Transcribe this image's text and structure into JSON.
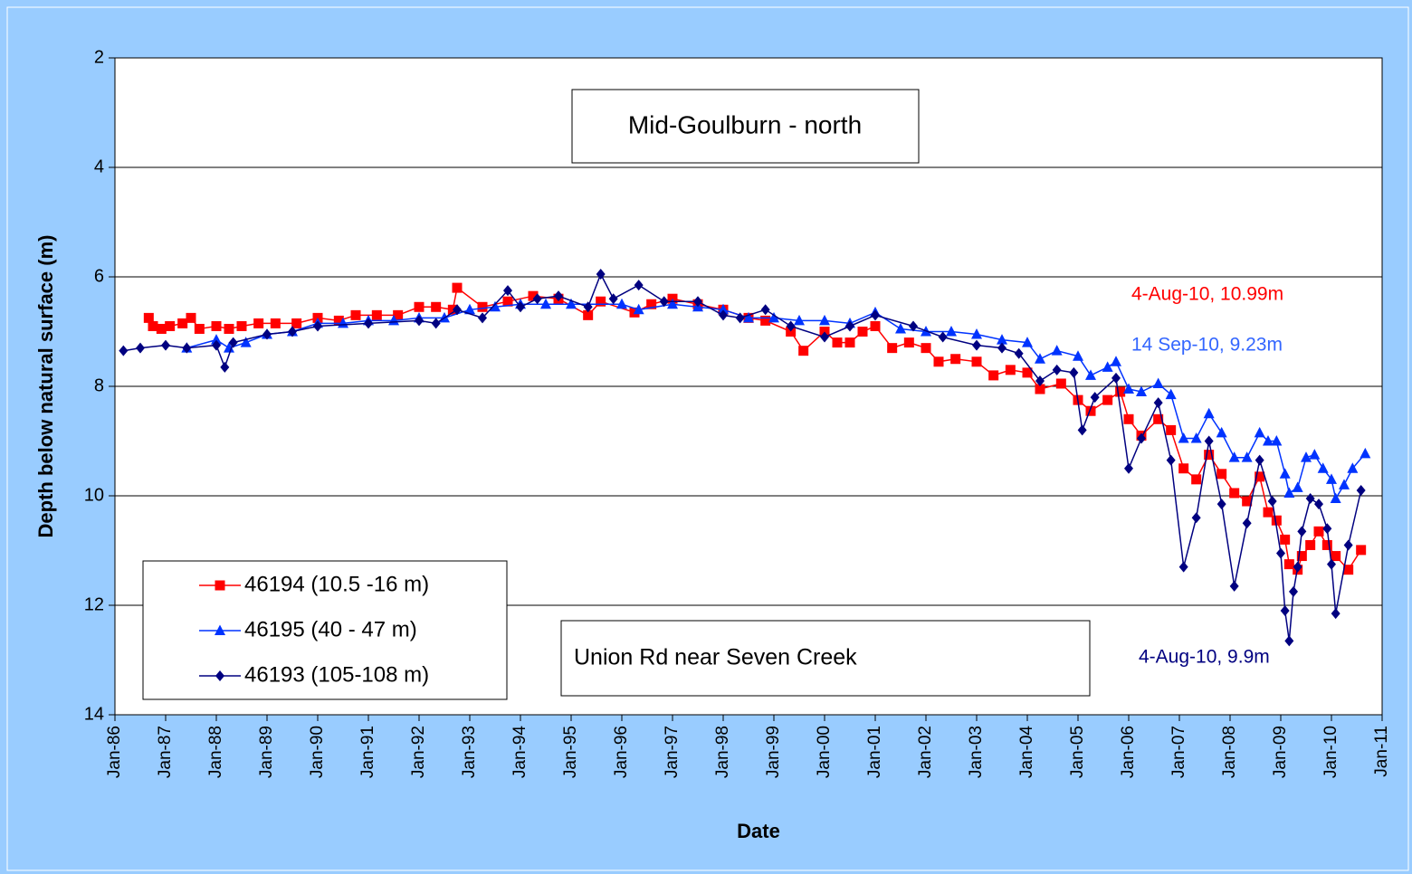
{
  "chart_data": {
    "type": "line",
    "title": "Mid-Goulburn - north",
    "subtitle": "Union Rd near Seven Creek",
    "x_label": "Date",
    "y_label": "Depth below natural surface (m)",
    "ylim": [
      2,
      14
    ],
    "y_inverted": true,
    "yticks": [
      2,
      4,
      6,
      8,
      10,
      12,
      14
    ],
    "xlim": [
      "1986-01",
      "2011-01"
    ],
    "xticks": [
      {
        "value": "1986-01",
        "label": "Jan-86"
      },
      {
        "value": "1987-01",
        "label": "Jan-87"
      },
      {
        "value": "1988-01",
        "label": "Jan-88"
      },
      {
        "value": "1989-01",
        "label": "Jan-89"
      },
      {
        "value": "1990-01",
        "label": "Jan-90"
      },
      {
        "value": "1991-01",
        "label": "Jan-91"
      },
      {
        "value": "1992-01",
        "label": "Jan-92"
      },
      {
        "value": "1993-01",
        "label": "Jan-93"
      },
      {
        "value": "1994-01",
        "label": "Jan-94"
      },
      {
        "value": "1995-01",
        "label": "Jan-95"
      },
      {
        "value": "1996-01",
        "label": "Jan-96"
      },
      {
        "value": "1997-01",
        "label": "Jan-97"
      },
      {
        "value": "1998-01",
        "label": "Jan-98"
      },
      {
        "value": "1999-01",
        "label": "Jan-99"
      },
      {
        "value": "2000-01",
        "label": "Jan-00"
      },
      {
        "value": "2001-01",
        "label": "Jan-01"
      },
      {
        "value": "2002-01",
        "label": "Jan-02"
      },
      {
        "value": "2003-01",
        "label": "Jan-03"
      },
      {
        "value": "2004-01",
        "label": "Jan-04"
      },
      {
        "value": "2005-01",
        "label": "Jan-05"
      },
      {
        "value": "2006-01",
        "label": "Jan-06"
      },
      {
        "value": "2007-01",
        "label": "Jan-07"
      },
      {
        "value": "2008-01",
        "label": "Jan-08"
      },
      {
        "value": "2009-01",
        "label": "Jan-09"
      },
      {
        "value": "2010-01",
        "label": "Jan-10"
      },
      {
        "value": "2011-01",
        "label": "Jan-11"
      }
    ],
    "grid": true,
    "legend": "lower left",
    "series": [
      {
        "name": "46194 (10.5 -16 m)",
        "color": "#ff0000",
        "marker": "square",
        "x": [
          "1986-09",
          "1986-10",
          "1986-12",
          "1987-02",
          "1987-05",
          "1987-07",
          "1987-09",
          "1988-01",
          "1988-04",
          "1988-07",
          "1988-11",
          "1989-03",
          "1989-08",
          "1990-01",
          "1990-06",
          "1990-10",
          "1991-03",
          "1991-08",
          "1992-01",
          "1992-05",
          "1992-09",
          "1992-10",
          "1993-04",
          "1993-10",
          "1994-04",
          "1994-10",
          "1995-05",
          "1995-08",
          "1996-04",
          "1996-08",
          "1997-01",
          "1997-07",
          "1998-01",
          "1998-07",
          "1998-11",
          "1999-05",
          "1999-08",
          "2000-01",
          "2000-04",
          "2000-07",
          "2000-10",
          "2001-01",
          "2001-05",
          "2001-09",
          "2002-01",
          "2002-04",
          "2002-08",
          "2003-01",
          "2003-05",
          "2003-09",
          "2004-01",
          "2004-04",
          "2004-09",
          "2005-01",
          "2005-04",
          "2005-08",
          "2005-11",
          "2006-01",
          "2006-04",
          "2006-08",
          "2006-11",
          "2007-02",
          "2007-05",
          "2007-08",
          "2007-11",
          "2008-02",
          "2008-05",
          "2008-08",
          "2008-10",
          "2008-12",
          "2009-02",
          "2009-03",
          "2009-05",
          "2009-06",
          "2009-08",
          "2009-10",
          "2009-12",
          "2010-02",
          "2010-05",
          "2010-08"
        ],
        "values": [
          6.75,
          6.9,
          6.95,
          6.9,
          6.85,
          6.75,
          6.95,
          6.9,
          6.95,
          6.9,
          6.85,
          6.85,
          6.85,
          6.75,
          6.8,
          6.7,
          6.7,
          6.7,
          6.55,
          6.55,
          6.6,
          6.2,
          6.55,
          6.45,
          6.35,
          6.4,
          6.7,
          6.45,
          6.65,
          6.5,
          6.4,
          6.5,
          6.6,
          6.75,
          6.8,
          7.0,
          7.35,
          7.0,
          7.2,
          7.2,
          7.0,
          6.9,
          7.3,
          7.2,
          7.3,
          7.55,
          7.5,
          7.55,
          7.8,
          7.7,
          7.75,
          8.05,
          7.95,
          8.25,
          8.45,
          8.25,
          8.1,
          8.6,
          8.9,
          8.6,
          8.8,
          9.5,
          9.7,
          9.25,
          9.6,
          9.95,
          10.1,
          9.65,
          10.3,
          10.45,
          10.8,
          11.25,
          11.35,
          11.1,
          10.9,
          10.65,
          10.9,
          11.1,
          11.35,
          10.99
        ]
      },
      {
        "name": "46195 (40 - 47 m)",
        "color": "#0033ff",
        "marker": "triangle",
        "x": [
          "1987-06",
          "1988-01",
          "1988-04",
          "1988-08",
          "1989-01",
          "1989-07",
          "1990-01",
          "1990-07",
          "1991-01",
          "1991-07",
          "1992-01",
          "1992-07",
          "1993-01",
          "1993-07",
          "1994-01",
          "1994-07",
          "1995-01",
          "1996-01",
          "1996-05",
          "1997-01",
          "1997-07",
          "1998-01",
          "1998-07",
          "1999-01",
          "1999-07",
          "2000-01",
          "2000-07",
          "2001-01",
          "2001-07",
          "2002-01",
          "2002-07",
          "2003-01",
          "2003-07",
          "2004-01",
          "2004-04",
          "2004-08",
          "2005-01",
          "2005-04",
          "2005-08",
          "2005-10",
          "2006-01",
          "2006-04",
          "2006-08",
          "2006-11",
          "2007-02",
          "2007-05",
          "2007-08",
          "2007-11",
          "2008-02",
          "2008-05",
          "2008-08",
          "2008-10",
          "2008-12",
          "2009-02",
          "2009-03",
          "2009-05",
          "2009-07",
          "2009-09",
          "2009-11",
          "2010-01",
          "2010-02",
          "2010-04",
          "2010-06",
          "2010-09"
        ],
        "values": [
          7.3,
          7.15,
          7.3,
          7.2,
          7.05,
          7.0,
          6.85,
          6.85,
          6.8,
          6.8,
          6.75,
          6.75,
          6.6,
          6.55,
          6.5,
          6.5,
          6.5,
          6.5,
          6.6,
          6.5,
          6.55,
          6.6,
          6.75,
          6.75,
          6.8,
          6.8,
          6.85,
          6.65,
          6.95,
          7.0,
          7.0,
          7.05,
          7.15,
          7.2,
          7.5,
          7.35,
          7.45,
          7.8,
          7.65,
          7.55,
          8.05,
          8.1,
          7.95,
          8.15,
          8.95,
          8.95,
          8.5,
          8.85,
          9.3,
          9.3,
          8.85,
          9.0,
          9.0,
          9.6,
          9.95,
          9.85,
          9.3,
          9.25,
          9.5,
          9.7,
          10.05,
          9.8,
          9.5,
          9.23
        ]
      },
      {
        "name": "46193 (105-108 m)",
        "color": "#000080",
        "marker": "diamond",
        "x": [
          "1986-03",
          "1986-07",
          "1987-01",
          "1987-06",
          "1988-01",
          "1988-03",
          "1988-05",
          "1989-01",
          "1989-07",
          "1990-01",
          "1991-01",
          "1992-01",
          "1992-05",
          "1992-10",
          "1993-04",
          "1993-10",
          "1994-01",
          "1994-05",
          "1994-10",
          "1995-05",
          "1995-08",
          "1995-11",
          "1996-05",
          "1996-11",
          "1997-07",
          "1998-01",
          "1998-05",
          "1998-11",
          "1999-05",
          "2000-01",
          "2000-07",
          "2001-01",
          "2001-10",
          "2002-05",
          "2003-01",
          "2003-07",
          "2003-11",
          "2004-04",
          "2004-08",
          "2004-12",
          "2005-02",
          "2005-05",
          "2005-10",
          "2006-01",
          "2006-04",
          "2006-08",
          "2006-11",
          "2007-02",
          "2007-05",
          "2007-08",
          "2007-11",
          "2008-02",
          "2008-05",
          "2008-08",
          "2008-11",
          "2009-01",
          "2009-02",
          "2009-03",
          "2009-04",
          "2009-05",
          "2009-06",
          "2009-08",
          "2009-10",
          "2009-12",
          "2010-01",
          "2010-02",
          "2010-05",
          "2010-08"
        ],
        "values": [
          7.35,
          7.3,
          7.25,
          7.3,
          7.25,
          7.65,
          7.2,
          7.05,
          7.0,
          6.9,
          6.85,
          6.8,
          6.85,
          6.6,
          6.75,
          6.25,
          6.55,
          6.4,
          6.35,
          6.55,
          5.95,
          6.4,
          6.15,
          6.45,
          6.45,
          6.7,
          6.75,
          6.6,
          6.9,
          7.1,
          6.9,
          6.7,
          6.9,
          7.1,
          7.25,
          7.3,
          7.4,
          7.9,
          7.7,
          7.75,
          8.8,
          8.2,
          7.85,
          9.5,
          8.95,
          8.3,
          9.35,
          11.3,
          10.4,
          9.0,
          10.15,
          11.65,
          10.5,
          9.35,
          10.1,
          11.05,
          12.1,
          12.65,
          11.75,
          11.3,
          10.65,
          10.05,
          10.15,
          10.6,
          11.25,
          12.15,
          10.9,
          9.9
        ]
      }
    ],
    "annotations": [
      {
        "text": "4-Aug-10, 10.99m",
        "color": "#ff0000"
      },
      {
        "text": "14 Sep-10, 9.23m",
        "color": "#3366ff"
      },
      {
        "text": "4-Aug-10, 9.9m",
        "color": "#000080"
      }
    ]
  }
}
